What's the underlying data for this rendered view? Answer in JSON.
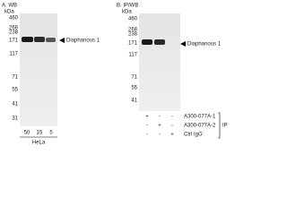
{
  "panels": [
    {
      "label": "A. WB",
      "unit": "kDa",
      "markers": [
        460,
        268,
        238,
        171,
        117,
        71,
        55,
        41,
        31
      ],
      "target": "Diaphanous 1",
      "lanes": [
        50,
        15,
        5
      ],
      "cell_line": "HeLa"
    },
    {
      "label": "B. IP/WB",
      "unit": "kDa",
      "markers": [
        460,
        268,
        238,
        171,
        117,
        71,
        55,
        41
      ],
      "target": "Diaphanous 1",
      "rows": [
        {
          "name": "A300-077A-1",
          "signs": [
            "+",
            "-",
            "-"
          ]
        },
        {
          "name": "A300-077A-2",
          "signs": [
            "-",
            "+",
            "-"
          ]
        },
        {
          "name": "Ctrl IgG",
          "signs": [
            "-",
            "-",
            "+"
          ]
        }
      ],
      "group": "IP"
    }
  ]
}
